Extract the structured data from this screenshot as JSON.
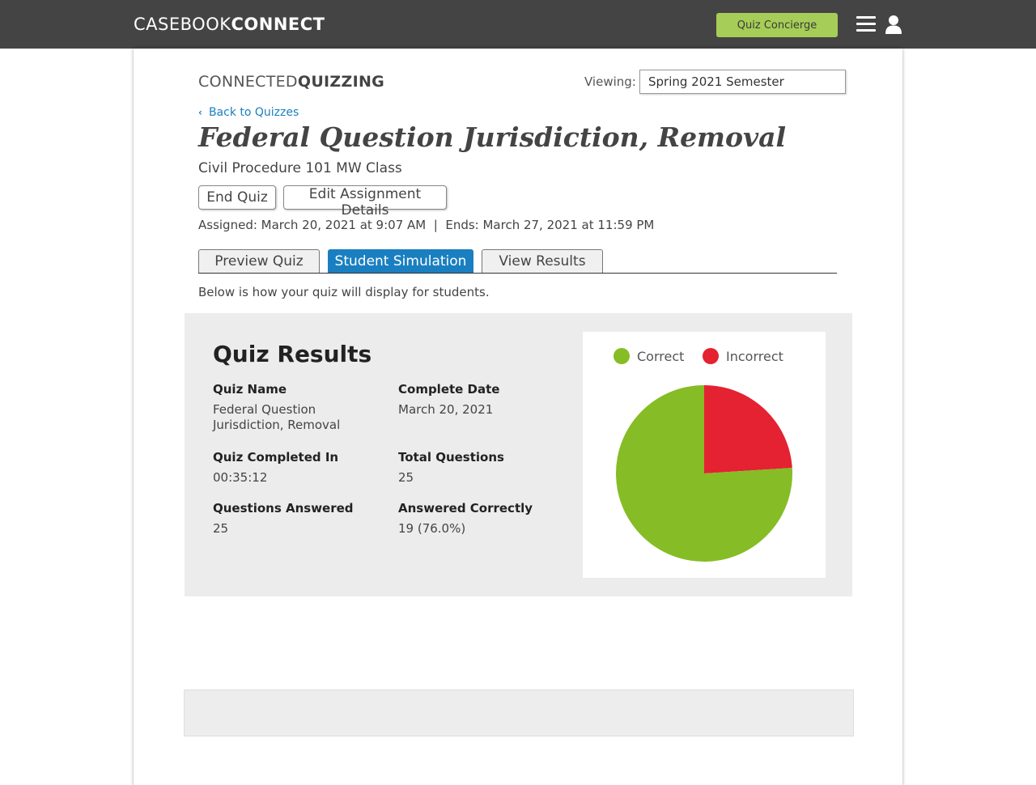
{
  "header": {
    "brand_light": "CASEBOOK",
    "brand_bold": "CONNECT",
    "concierge_label": "Quiz Concierge",
    "menu_icon": "hamburger-icon",
    "user_icon": "user-icon"
  },
  "page": {
    "logo_light": "CONNECTED",
    "logo_bold": "QUIZZING",
    "viewing_label": "Viewing:",
    "viewing_value": "Spring 2021 Semester",
    "back_label": "Back to Quizzes",
    "quiz_title": "Federal Question Jurisdiction, Removal",
    "class_name": "Civil Procedure 101 MW Class",
    "end_quiz_label": "End Quiz",
    "edit_details_label": "Edit Assignment Details",
    "dates": "Assigned: March 20, 2021 at 9:07 AM  |  Ends: March 27, 2021 at 11:59 PM",
    "tabs": [
      {
        "label": "Preview Quiz",
        "active": false
      },
      {
        "label": "Student Simulation",
        "active": true
      },
      {
        "label": "View Results",
        "active": false
      }
    ],
    "description": "Below is how your quiz will display for students."
  },
  "results": {
    "title": "Quiz Results",
    "fields": {
      "quiz_name_label": "Quiz Name",
      "quiz_name_value": "Federal Question Jurisdiction, Removal",
      "complete_date_label": "Complete Date",
      "complete_date_value": "March 20, 2021",
      "completed_in_label": "Quiz Completed In",
      "completed_in_value": "00:35:12",
      "total_questions_label": "Total Questions",
      "total_questions_value": "25",
      "answered_label": "Questions Answered",
      "answered_value": "25",
      "correct_label": "Answered Correctly",
      "correct_value": "19 (76.0%)"
    }
  },
  "chart_data": {
    "type": "pie",
    "categories": [
      "Correct",
      "Incorrect"
    ],
    "values": [
      19,
      6
    ],
    "colors": [
      "#86bc25",
      "#e42231"
    ],
    "legend": "top"
  },
  "colors": {
    "accent": "#1a7fc1",
    "concierge": "#a6cd57",
    "topbar": "#444444"
  }
}
